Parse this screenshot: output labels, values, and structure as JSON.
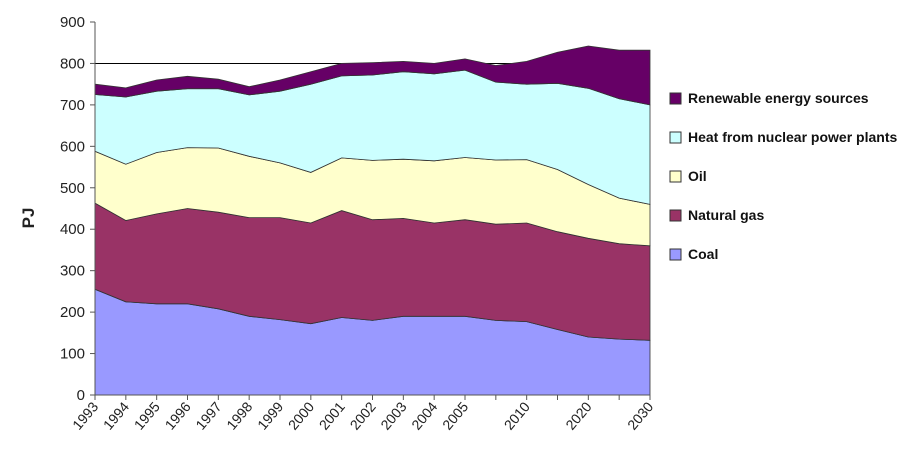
{
  "chart_data": {
    "type": "area",
    "stacked": true,
    "ylabel": "PJ",
    "xlabel": "",
    "title": "",
    "ylim": [
      0,
      900
    ],
    "yticks": [
      0,
      100,
      200,
      300,
      400,
      500,
      600,
      700,
      800,
      900
    ],
    "categories": [
      "1993",
      "1994",
      "1995",
      "1996",
      "1997",
      "1998",
      "1999",
      "2000",
      "2001",
      "2002",
      "2003",
      "2004",
      "2005",
      "",
      "2010",
      "",
      "2020",
      "",
      "2030"
    ],
    "reference_line": 800,
    "legend_position": "right",
    "series": [
      {
        "name": "Coal",
        "color": "#9999ff",
        "values": [
          255,
          225,
          220,
          220,
          208,
          190,
          182,
          172,
          187,
          180,
          190,
          190,
          190,
          180,
          177,
          158,
          140,
          135,
          132
        ]
      },
      {
        "name": "Natural gas",
        "color": "#993366",
        "values": [
          208,
          196,
          217,
          230,
          233,
          238,
          246,
          243,
          258,
          243,
          236,
          225,
          233,
          232,
          238,
          236,
          238,
          230,
          228
        ]
      },
      {
        "name": "Oil",
        "color": "#ffffcc",
        "values": [
          125,
          136,
          148,
          147,
          155,
          148,
          132,
          122,
          127,
          143,
          143,
          150,
          150,
          155,
          153,
          150,
          130,
          110,
          100
        ]
      },
      {
        "name": "Heat from nuclear power plants",
        "color": "#ccffff",
        "values": [
          137,
          162,
          148,
          142,
          143,
          148,
          173,
          213,
          198,
          206,
          211,
          210,
          211,
          188,
          182,
          208,
          232,
          240,
          240
        ]
      },
      {
        "name": "Renewable energy sources",
        "color": "#660066",
        "values": [
          25,
          22,
          27,
          30,
          23,
          20,
          27,
          30,
          30,
          30,
          25,
          25,
          27,
          40,
          55,
          75,
          102,
          117,
          132
        ]
      }
    ]
  }
}
